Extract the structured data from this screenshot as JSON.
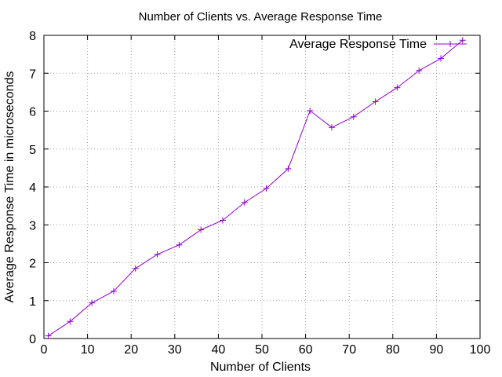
{
  "chart_data": {
    "type": "line",
    "title": "Number of Clients vs. Average Response Time",
    "xlabel": "Number of Clients",
    "ylabel": "Average Response Time in microseconds",
    "xlim": [
      0,
      100
    ],
    "ylim": [
      0,
      8
    ],
    "xticks": [
      0,
      10,
      20,
      30,
      40,
      50,
      60,
      70,
      80,
      90,
      100
    ],
    "yticks": [
      0,
      1,
      2,
      3,
      4,
      5,
      6,
      7,
      8
    ],
    "grid": true,
    "legend_position": "top-right",
    "series": [
      {
        "name": "Average Response Time",
        "color": "#9400d3",
        "marker": "plus",
        "x": [
          1,
          6,
          11,
          16,
          21,
          26,
          31,
          36,
          41,
          46,
          51,
          56,
          61,
          66,
          71,
          76,
          81,
          86,
          91,
          96
        ],
        "y": [
          0.07,
          0.45,
          0.94,
          1.25,
          1.85,
          2.22,
          2.47,
          2.87,
          3.12,
          3.59,
          3.96,
          4.48,
          6.01,
          5.57,
          5.85,
          6.25,
          6.62,
          7.07,
          7.39,
          7.87
        ]
      }
    ]
  }
}
